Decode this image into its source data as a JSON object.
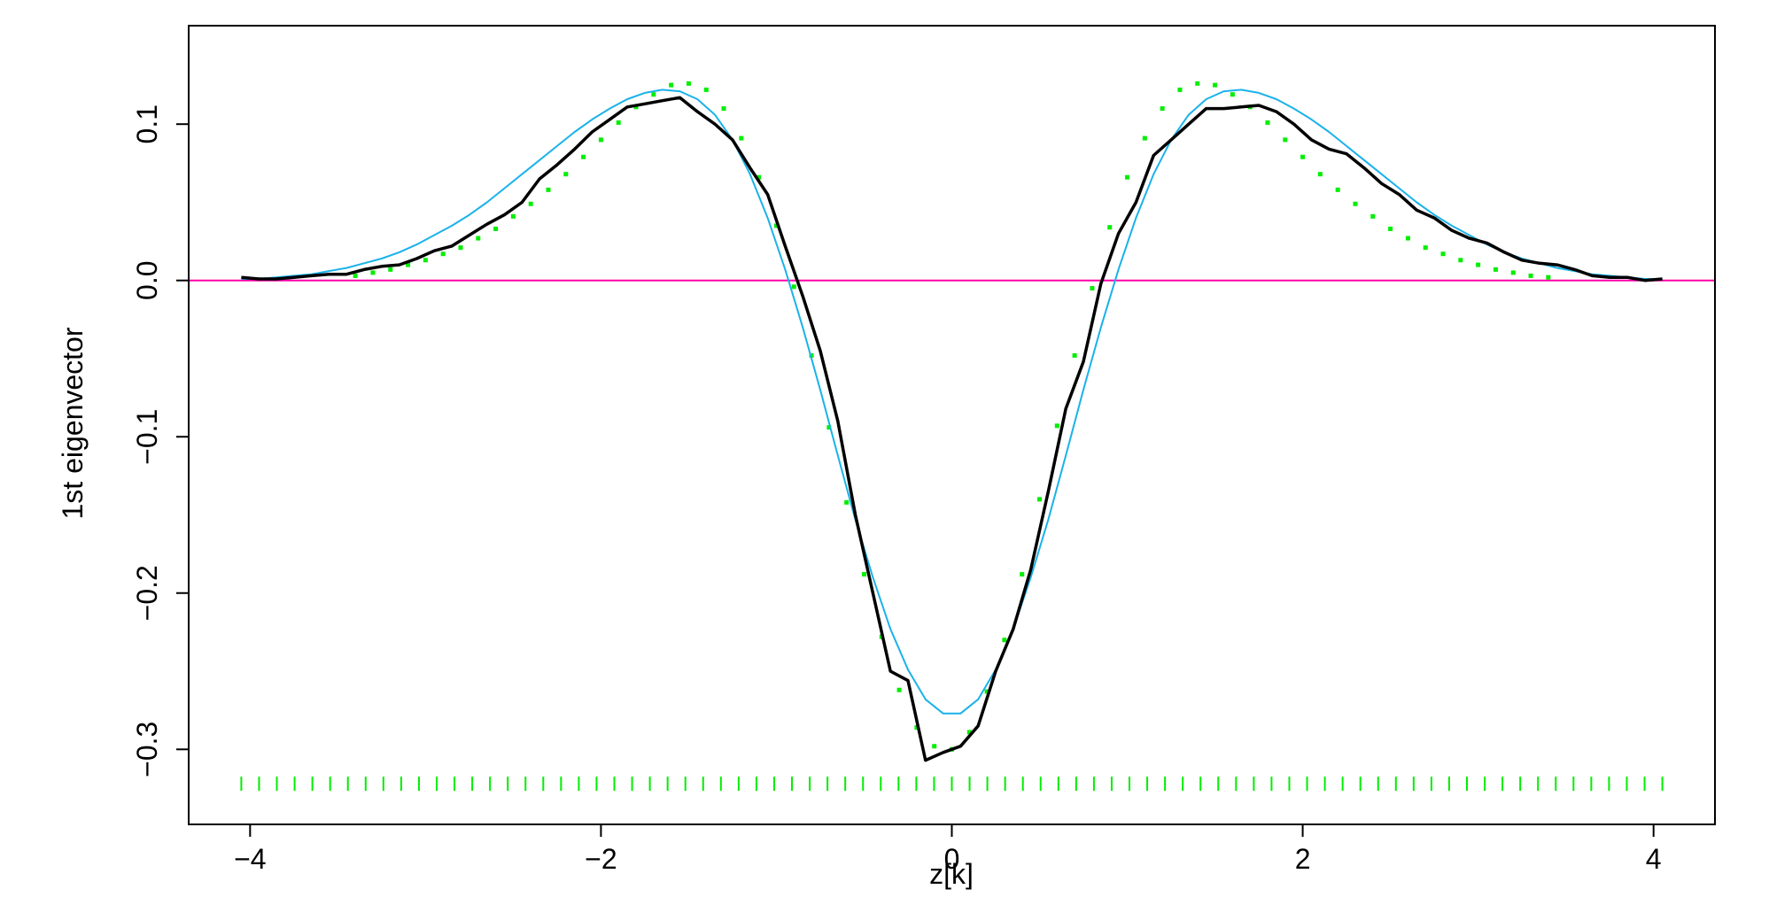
{
  "chart_data": {
    "type": "line",
    "title": "",
    "xlabel": "z[k]",
    "ylabel": "1st eigenvector",
    "xlim": [
      -4.35,
      4.35
    ],
    "ylim": [
      -0.348,
      0.163
    ],
    "x_ticks": [
      -4,
      -2,
      0,
      2,
      4
    ],
    "x_tick_labels": [
      "−4",
      "−2",
      "0",
      "2",
      "4"
    ],
    "y_ticks": [
      -0.3,
      -0.2,
      -0.1,
      0.0,
      0.1
    ],
    "y_tick_labels": [
      "−0.3",
      "−0.2",
      "−0.1",
      "0.0",
      "0.1"
    ],
    "grid": false,
    "legend": "none",
    "reference_line": {
      "y": 0.0,
      "color": "#ff00aa"
    },
    "rug": {
      "y": -0.322,
      "x_start": -4.05,
      "x_end": 4.05,
      "count": 81,
      "color": "#00ee00"
    },
    "series": [
      {
        "style": "solid-thick",
        "color": "#000000",
        "x": [
          -4.05,
          -3.95,
          -3.85,
          -3.75,
          -3.65,
          -3.55,
          -3.45,
          -3.35,
          -3.25,
          -3.15,
          -3.05,
          -2.95,
          -2.85,
          -2.75,
          -2.65,
          -2.55,
          -2.45,
          -2.35,
          -2.25,
          -2.15,
          -2.05,
          -1.95,
          -1.85,
          -1.75,
          -1.65,
          -1.55,
          -1.45,
          -1.35,
          -1.25,
          -1.15,
          -1.05,
          -0.95,
          -0.85,
          -0.75,
          -0.65,
          -0.55,
          -0.45,
          -0.35,
          -0.25,
          -0.15,
          -0.05,
          0.05,
          0.15,
          0.25,
          0.35,
          0.45,
          0.55,
          0.65,
          0.75,
          0.85,
          0.95,
          1.05,
          1.15,
          1.25,
          1.35,
          1.45,
          1.55,
          1.65,
          1.75,
          1.85,
          1.95,
          2.05,
          2.15,
          2.25,
          2.35,
          2.45,
          2.55,
          2.65,
          2.75,
          2.85,
          2.95,
          3.05,
          3.15,
          3.25,
          3.35,
          3.45,
          3.55,
          3.65,
          3.75,
          3.85,
          3.95,
          4.05
        ],
        "y": [
          0.002,
          0.001,
          0.001,
          0.002,
          0.003,
          0.004,
          0.004,
          0.007,
          0.009,
          0.01,
          0.014,
          0.019,
          0.022,
          0.029,
          0.036,
          0.042,
          0.05,
          0.065,
          0.074,
          0.084,
          0.095,
          0.103,
          0.111,
          0.113,
          0.115,
          0.117,
          0.108,
          0.1,
          0.09,
          0.072,
          0.055,
          0.022,
          -0.01,
          -0.045,
          -0.09,
          -0.15,
          -0.2,
          -0.25,
          -0.256,
          -0.307,
          -0.302,
          -0.298,
          -0.285,
          -0.25,
          -0.223,
          -0.185,
          -0.135,
          -0.082,
          -0.052,
          -0.002,
          0.03,
          0.05,
          0.08,
          0.09,
          0.1,
          0.11,
          0.11,
          0.111,
          0.112,
          0.108,
          0.1,
          0.09,
          0.084,
          0.081,
          0.072,
          0.062,
          0.055,
          0.045,
          0.04,
          0.032,
          0.027,
          0.024,
          0.018,
          0.013,
          0.011,
          0.01,
          0.007,
          0.003,
          0.002,
          0.002,
          0.0,
          0.001
        ]
      },
      {
        "style": "solid-thin",
        "color": "#1ab2ea",
        "x": [
          -4.05,
          -3.95,
          -3.85,
          -3.75,
          -3.65,
          -3.55,
          -3.45,
          -3.35,
          -3.25,
          -3.15,
          -3.05,
          -2.95,
          -2.85,
          -2.75,
          -2.65,
          -2.55,
          -2.45,
          -2.35,
          -2.25,
          -2.15,
          -2.05,
          -1.95,
          -1.85,
          -1.75,
          -1.65,
          -1.55,
          -1.45,
          -1.35,
          -1.25,
          -1.15,
          -1.05,
          -0.95,
          -0.85,
          -0.75,
          -0.65,
          -0.55,
          -0.45,
          -0.35,
          -0.25,
          -0.15,
          -0.05,
          0.05,
          0.15,
          0.25,
          0.35,
          0.45,
          0.55,
          0.65,
          0.75,
          0.85,
          0.95,
          1.05,
          1.15,
          1.25,
          1.35,
          1.45,
          1.55,
          1.65,
          1.75,
          1.85,
          1.95,
          2.05,
          2.15,
          2.25,
          2.35,
          2.45,
          2.55,
          2.65,
          2.75,
          2.85,
          2.95,
          3.05,
          3.15,
          3.25,
          3.35,
          3.45,
          3.55,
          3.65,
          3.75,
          3.85,
          3.95,
          4.05
        ],
        "y": [
          0.001,
          0.001,
          0.002,
          0.003,
          0.004,
          0.006,
          0.008,
          0.011,
          0.014,
          0.018,
          0.023,
          0.029,
          0.035,
          0.042,
          0.05,
          0.059,
          0.068,
          0.077,
          0.086,
          0.095,
          0.103,
          0.11,
          0.116,
          0.12,
          0.122,
          0.121,
          0.116,
          0.106,
          0.09,
          0.068,
          0.04,
          0.007,
          -0.03,
          -0.07,
          -0.112,
          -0.153,
          -0.19,
          -0.223,
          -0.249,
          -0.268,
          -0.277,
          -0.277,
          -0.268,
          -0.249,
          -0.223,
          -0.19,
          -0.153,
          -0.112,
          -0.07,
          -0.03,
          0.007,
          0.04,
          0.068,
          0.09,
          0.106,
          0.116,
          0.121,
          0.122,
          0.12,
          0.116,
          0.11,
          0.103,
          0.095,
          0.086,
          0.077,
          0.068,
          0.059,
          0.05,
          0.042,
          0.035,
          0.029,
          0.023,
          0.018,
          0.014,
          0.011,
          0.008,
          0.006,
          0.004,
          0.003,
          0.002,
          0.001,
          0.001
        ]
      },
      {
        "style": "dotted",
        "color": "#00ee00",
        "x": [
          -3.4,
          -3.3,
          -3.2,
          -3.1,
          -3.0,
          -2.9,
          -2.8,
          -2.7,
          -2.6,
          -2.5,
          -2.4,
          -2.3,
          -2.2,
          -2.1,
          -2.0,
          -1.9,
          -1.8,
          -1.7,
          -1.6,
          -1.5,
          -1.4,
          -1.3,
          -1.2,
          -1.1,
          -1.0,
          -0.9,
          -0.8,
          -0.7,
          -0.6,
          -0.5,
          -0.4,
          -0.3,
          -0.2,
          -0.1,
          0.0,
          0.1,
          0.2,
          0.3,
          0.4,
          0.5,
          0.6,
          0.7,
          0.8,
          0.9,
          1.0,
          1.1,
          1.2,
          1.3,
          1.4,
          1.5,
          1.6,
          1.7,
          1.8,
          1.9,
          2.0,
          2.1,
          2.2,
          2.3,
          2.4,
          2.5,
          2.6,
          2.7,
          2.8,
          2.9,
          3.0,
          3.1,
          3.2,
          3.3,
          3.4
        ],
        "y": [
          0.003,
          0.005,
          0.007,
          0.01,
          0.013,
          0.017,
          0.021,
          0.027,
          0.033,
          0.041,
          0.049,
          0.058,
          0.068,
          0.079,
          0.09,
          0.101,
          0.111,
          0.119,
          0.125,
          0.126,
          0.122,
          0.11,
          0.091,
          0.066,
          0.035,
          -0.004,
          -0.048,
          -0.094,
          -0.142,
          -0.188,
          -0.228,
          -0.262,
          -0.286,
          -0.298,
          -0.3,
          -0.289,
          -0.263,
          -0.23,
          -0.188,
          -0.14,
          -0.093,
          -0.048,
          -0.005,
          0.034,
          0.066,
          0.091,
          0.11,
          0.122,
          0.126,
          0.125,
          0.119,
          0.111,
          0.101,
          0.09,
          0.079,
          0.068,
          0.058,
          0.049,
          0.041,
          0.033,
          0.027,
          0.021,
          0.017,
          0.013,
          0.01,
          0.007,
          0.005,
          0.003,
          0.002
        ]
      }
    ]
  }
}
